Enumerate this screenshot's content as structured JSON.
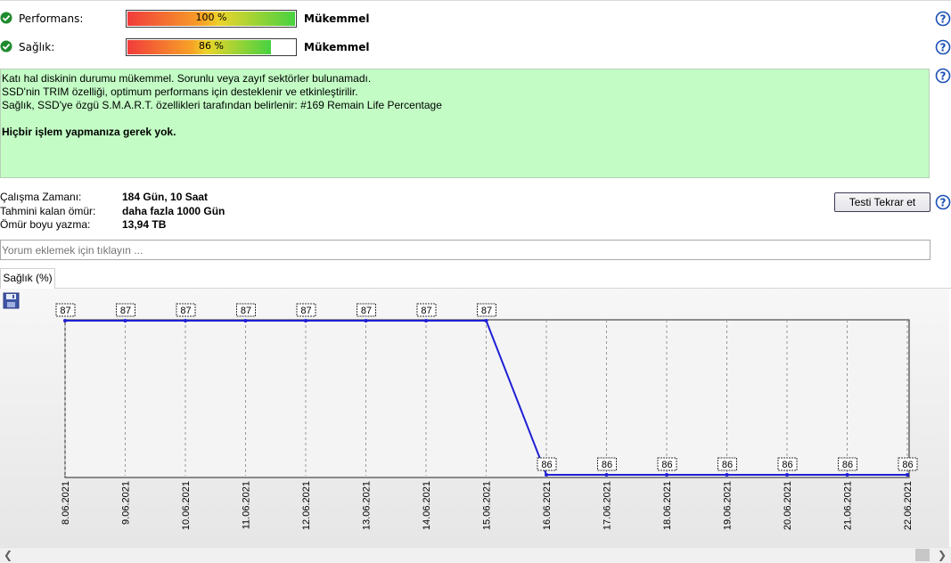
{
  "metrics": [
    {
      "label": "Performans:",
      "percent": 100,
      "value_text": "100 %",
      "rating": "Mükemmel"
    },
    {
      "label": "Sağlık:",
      "percent": 86,
      "value_text": "86 %",
      "rating": "Mükemmel"
    }
  ],
  "status": {
    "lines": [
      "Katı hal diskinin durumu mükemmel. Sorunlu veya zayıf sektörler bulunamadı.",
      "SSD'nin TRIM özelliği, optimum performans için desteklenir ve etkinleştirilir.",
      "Sağlık, SSD'ye özgü S.M.A.R.T. özellikleri tarafından belirlenir: #169 Remain Life Percentage"
    ],
    "advice": "Hiçbir işlem yapmanıza gerek yok.",
    "background": "#c3fdc5"
  },
  "info": {
    "uptime_label": "Çalışma Zamanı:",
    "uptime_value": "184 Gün, 10 Saat",
    "remaining_label": "Tahmini kalan ömür:",
    "remaining_value": "daha fazla 1000 Gün",
    "writes_label": "Ömür boyu yazma:",
    "writes_value": "13,94 TB"
  },
  "retest_button": "Testi Tekrar et",
  "comment_placeholder": "Yorum eklemek için tıklayın ...",
  "tab_label": "Sağlık (%)",
  "icons": {
    "ok": "check-icon",
    "help": "help-icon",
    "save": "save-icon"
  },
  "colors": {
    "line": "#1f1fd6",
    "ok_green": "#1f8a2e",
    "help_blue": "#1a4fb5"
  },
  "chart_data": {
    "type": "line",
    "categories": [
      "8.06.2021",
      "9.06.2021",
      "10.06.2021",
      "11.06.2021",
      "12.06.2021",
      "13.06.2021",
      "14.06.2021",
      "15.06.2021",
      "16.06.2021",
      "17.06.2021",
      "18.06.2021",
      "19.06.2021",
      "20.06.2021",
      "21.06.2021",
      "22.06.2021"
    ],
    "series": [
      {
        "values": [
          87,
          87,
          87,
          87,
          87,
          87,
          87,
          87,
          86,
          86,
          86,
          86,
          86,
          86,
          86
        ]
      }
    ],
    "ylim": [
      86,
      87
    ],
    "grid": "vertical dashed"
  }
}
